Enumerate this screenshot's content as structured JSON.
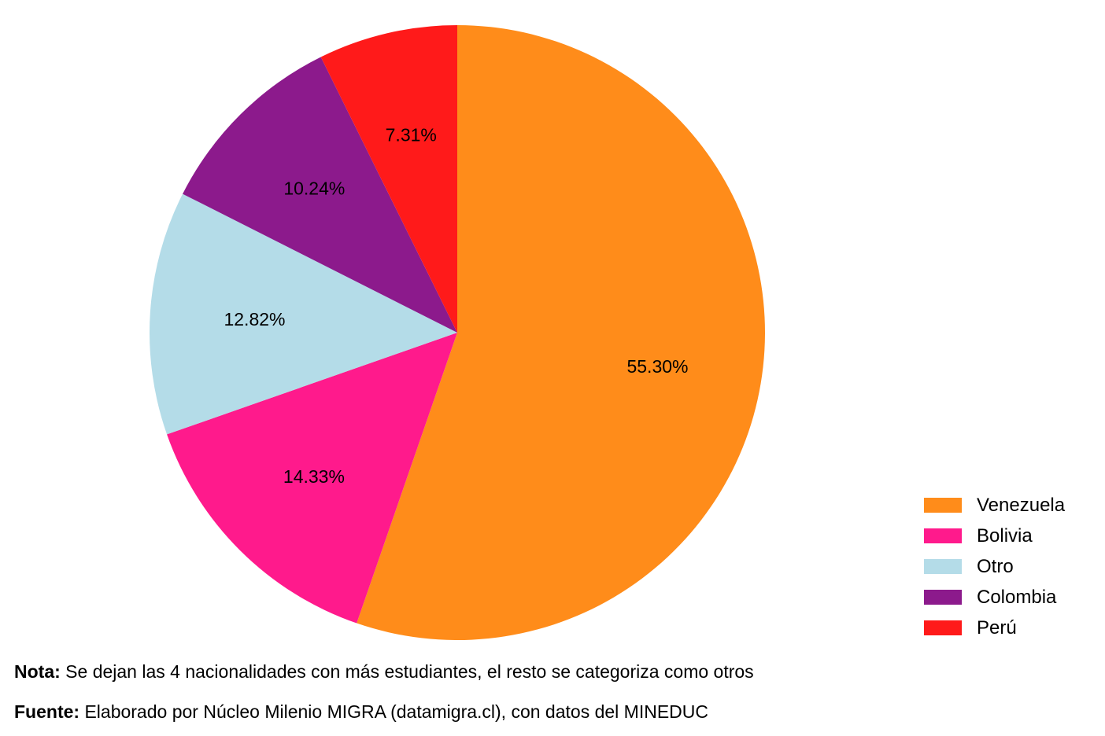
{
  "chart_data": {
    "type": "pie",
    "title": "",
    "slices": [
      {
        "label": "Venezuela",
        "value": 55.3,
        "value_label": "55.30%",
        "color": "#FF8C1A"
      },
      {
        "label": "Bolivia",
        "value": 14.33,
        "value_label": "14.33%",
        "color": "#FF1A8C"
      },
      {
        "label": "Otro",
        "value": 12.82,
        "value_label": "12.82%",
        "color": "#B4DCE8"
      },
      {
        "label": "Colombia",
        "value": 10.24,
        "value_label": "10.24%",
        "color": "#8C1A8C"
      },
      {
        "label": "Perú",
        "value": 7.31,
        "value_label": "7.31%",
        "color": "#FF1A1A"
      }
    ],
    "start_angle": "12 o'clock",
    "direction": "clockwise",
    "legend_position": "bottom-right"
  },
  "footer": {
    "note_label": "Nota:",
    "note_text": " Se dejan las 4 nacionalidades con más estudiantes, el resto se categoriza como otros",
    "source_label": "Fuente:",
    "source_text": " Elaborado por Núcleo  Milenio MIGRA (datamigra.cl), con datos del MINEDUC"
  }
}
